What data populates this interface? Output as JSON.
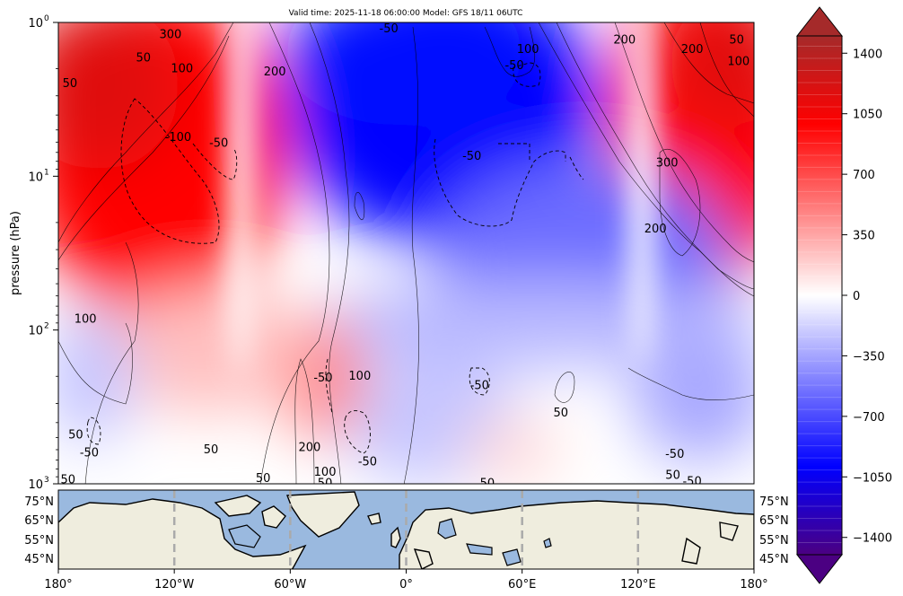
{
  "chart_data": {
    "type": "heatmap",
    "title": "Valid time: 2025-11-18 06:00:00 Model: GFS 18/11 06UTC",
    "ylabel": "pressure (hPa)",
    "y_scale": "log",
    "y_range_hpa": [
      1000,
      1
    ],
    "y_ticks": [
      {
        "label": "10",
        "sup": "0",
        "value": 1
      },
      {
        "label": "10",
        "sup": "1",
        "value": 10
      },
      {
        "label": "10",
        "sup": "2",
        "value": 100
      },
      {
        "label": "10",
        "sup": "3",
        "value": 1000
      }
    ],
    "x_range_lon": [
      -180,
      180
    ],
    "x_ticks": [
      "180°",
      "120°W",
      "60°W",
      "0°",
      "60°E",
      "120°E",
      "180°"
    ],
    "map_lat_ticks": [
      "75°N",
      "65°N",
      "55°N",
      "45°N"
    ],
    "colorbar": {
      "ticks": [
        "1400",
        "1050",
        "700",
        "350",
        "0",
        "−350",
        "−700",
        "−1050",
        "−1400"
      ],
      "range": [
        -1500,
        1500
      ],
      "colors": {
        "min": "#4b0082",
        "neg": "#0000ff",
        "zero": "#ffffff",
        "pos": "#ff0000",
        "max": "#a52a2a"
      }
    },
    "contour_labels": [
      {
        "text": "300",
        "lon": -122,
        "p": 1.2
      },
      {
        "text": "-50",
        "lon": -9,
        "p": 1.1
      },
      {
        "text": "100",
        "lon": 63,
        "p": 1.5
      },
      {
        "text": "200",
        "lon": 113,
        "p": 1.3
      },
      {
        "text": "200",
        "lon": 148,
        "p": 1.5
      },
      {
        "text": "50",
        "lon": 171,
        "p": 1.3
      },
      {
        "text": "100",
        "lon": 172,
        "p": 1.8
      },
      {
        "text": "50",
        "lon": -136,
        "p": 1.7
      },
      {
        "text": "100",
        "lon": -116,
        "p": 2.0
      },
      {
        "text": "200",
        "lon": -68,
        "p": 2.1
      },
      {
        "text": "-50",
        "lon": 56,
        "p": 1.9
      },
      {
        "text": "50",
        "lon": -174,
        "p": 2.5
      },
      {
        "text": "-100",
        "lon": -118,
        "p": 5.6
      },
      {
        "text": "-50",
        "lon": -97,
        "p": 6.1
      },
      {
        "text": "-50",
        "lon": 34,
        "p": 7.4
      },
      {
        "text": "300",
        "lon": 135,
        "p": 8.2
      },
      {
        "text": "200",
        "lon": 129,
        "p": 22
      },
      {
        "text": "100",
        "lon": -166,
        "p": 85
      },
      {
        "text": "-50",
        "lon": -43,
        "p": 205
      },
      {
        "text": "100",
        "lon": -24,
        "p": 200
      },
      {
        "text": "-50",
        "lon": 38,
        "p": 230
      },
      {
        "text": "50",
        "lon": 80,
        "p": 345
      },
      {
        "text": "50",
        "lon": -171,
        "p": 480
      },
      {
        "text": "-50",
        "lon": -164,
        "p": 630
      },
      {
        "text": "50",
        "lon": -101,
        "p": 600
      },
      {
        "text": "200",
        "lon": -50,
        "p": 580
      },
      {
        "text": "-50",
        "lon": -20,
        "p": 720
      },
      {
        "text": "100",
        "lon": -42,
        "p": 840
      },
      {
        "text": "50",
        "lon": -74,
        "p": 925
      },
      {
        "text": "50",
        "lon": -42,
        "p": 990
      },
      {
        "text": "50",
        "lon": 42,
        "p": 990
      },
      {
        "text": "50",
        "lon": 138,
        "p": 880
      },
      {
        "text": "-50",
        "lon": 139,
        "p": 640
      },
      {
        "text": "-50",
        "lon": 148,
        "p": 970
      },
      {
        "text": "50",
        "lon": -175,
        "p": 940
      }
    ]
  }
}
